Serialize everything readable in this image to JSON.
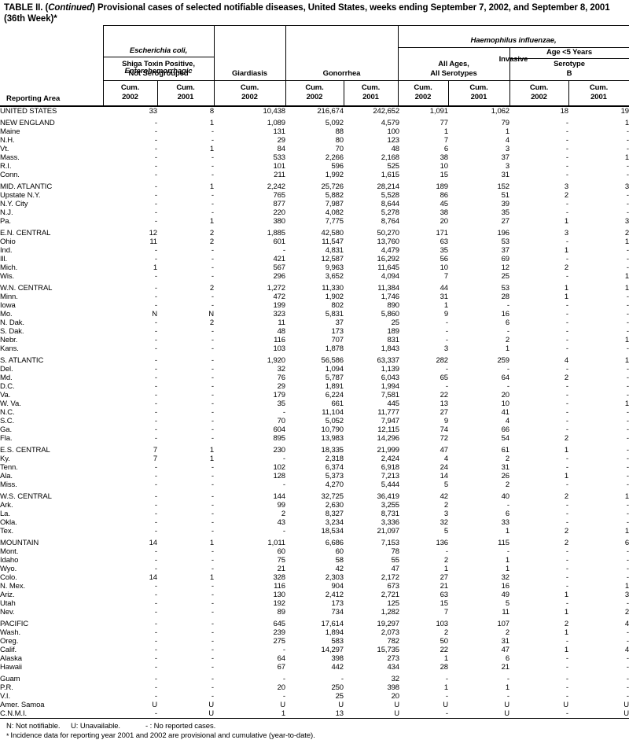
{
  "title": {
    "prefix": "TABLE II. (",
    "continued": "Continued",
    "rest": ") Provisional cases of selected notifiable diseases, United States, weeks ending September 7, 2002, and September 8, 2001",
    "line2": "(36th Week)*"
  },
  "table": {
    "header": {
      "reporting_area": "Reporting Area",
      "ecoli_line1": "Escherichia coli,",
      "ecoli_line2": "Enterohemorrhagic",
      "shiga": "Shiga Toxin Positive,\nNot Serogrouped",
      "giardiasis": "Giardiasis",
      "gonorrhea": "Gonorrhea",
      "hflu_line1": "Haemophilus influenzae,",
      "hflu_line2": "Invasive",
      "age5": "Age <5 Years",
      "all_ages": "All Ages,\nAll Serotypes",
      "serotype_b": "Serotype\nB",
      "cum2002": "Cum.\n2002",
      "cum2001": "Cum.\n2001"
    },
    "sections": [
      {
        "rows": [
          [
            "UNITED STATES",
            "33",
            "8",
            "10,438",
            "216,674",
            "242,652",
            "1,091",
            "1,062",
            "18",
            "19"
          ]
        ]
      },
      {
        "rows": [
          [
            "NEW ENGLAND",
            "-",
            "1",
            "1,089",
            "5,092",
            "4,579",
            "77",
            "79",
            "-",
            "1"
          ],
          [
            "Maine",
            "-",
            "-",
            "131",
            "88",
            "100",
            "1",
            "1",
            "-",
            "-"
          ],
          [
            "N.H.",
            "-",
            "-",
            "29",
            "80",
            "123",
            "7",
            "4",
            "-",
            "-"
          ],
          [
            "Vt.",
            "-",
            "1",
            "84",
            "70",
            "48",
            "6",
            "3",
            "-",
            "-"
          ],
          [
            "Mass.",
            "-",
            "-",
            "533",
            "2,266",
            "2,168",
            "38",
            "37",
            "-",
            "1"
          ],
          [
            "R.I.",
            "-",
            "-",
            "101",
            "596",
            "525",
            "10",
            "3",
            "-",
            "-"
          ],
          [
            "Conn.",
            "-",
            "-",
            "211",
            "1,992",
            "1,615",
            "15",
            "31",
            "-",
            "-"
          ]
        ]
      },
      {
        "rows": [
          [
            "MID. ATLANTIC",
            "-",
            "1",
            "2,242",
            "25,726",
            "28,214",
            "189",
            "152",
            "3",
            "3"
          ],
          [
            "Upstate N.Y.",
            "-",
            "-",
            "765",
            "5,882",
            "5,528",
            "86",
            "51",
            "2",
            "-"
          ],
          [
            "N.Y. City",
            "-",
            "-",
            "877",
            "7,987",
            "8,644",
            "45",
            "39",
            "-",
            "-"
          ],
          [
            "N.J.",
            "-",
            "-",
            "220",
            "4,082",
            "5,278",
            "38",
            "35",
            "-",
            "-"
          ],
          [
            "Pa.",
            "-",
            "1",
            "380",
            "7,775",
            "8,764",
            "20",
            "27",
            "1",
            "3"
          ]
        ]
      },
      {
        "rows": [
          [
            "E.N. CENTRAL",
            "12",
            "2",
            "1,885",
            "42,580",
            "50,270",
            "171",
            "196",
            "3",
            "2"
          ],
          [
            "Ohio",
            "11",
            "2",
            "601",
            "11,547",
            "13,760",
            "63",
            "53",
            "-",
            "1"
          ],
          [
            "Ind.",
            "-",
            "-",
            "-",
            "4,831",
            "4,479",
            "35",
            "37",
            "1",
            "-"
          ],
          [
            "Ill.",
            "-",
            "-",
            "421",
            "12,587",
            "16,292",
            "56",
            "69",
            "-",
            "-"
          ],
          [
            "Mich.",
            "1",
            "-",
            "567",
            "9,963",
            "11,645",
            "10",
            "12",
            "2",
            "-"
          ],
          [
            "Wis.",
            "-",
            "-",
            "296",
            "3,652",
            "4,094",
            "7",
            "25",
            "-",
            "1"
          ]
        ]
      },
      {
        "rows": [
          [
            "W.N. CENTRAL",
            "-",
            "2",
            "1,272",
            "11,330",
            "11,384",
            "44",
            "53",
            "1",
            "1"
          ],
          [
            "Minn.",
            "-",
            "-",
            "472",
            "1,902",
            "1,746",
            "31",
            "28",
            "1",
            "-"
          ],
          [
            "Iowa",
            "-",
            "-",
            "199",
            "802",
            "890",
            "1",
            "-",
            "-",
            "-"
          ],
          [
            "Mo.",
            "N",
            "N",
            "323",
            "5,831",
            "5,860",
            "9",
            "16",
            "-",
            "-"
          ],
          [
            "N. Dak.",
            "-",
            "2",
            "11",
            "37",
            "25",
            "-",
            "6",
            "-",
            "-"
          ],
          [
            "S. Dak.",
            "-",
            "-",
            "48",
            "173",
            "189",
            "-",
            "-",
            "-",
            "-"
          ],
          [
            "Nebr.",
            "-",
            "-",
            "116",
            "707",
            "831",
            "-",
            "2",
            "-",
            "1"
          ],
          [
            "Kans.",
            "-",
            "-",
            "103",
            "1,878",
            "1,843",
            "3",
            "1",
            "-",
            "-"
          ]
        ]
      },
      {
        "rows": [
          [
            "S. ATLANTIC",
            "-",
            "-",
            "1,920",
            "56,586",
            "63,337",
            "282",
            "259",
            "4",
            "1"
          ],
          [
            "Del.",
            "-",
            "-",
            "32",
            "1,094",
            "1,139",
            "-",
            "-",
            "-",
            "-"
          ],
          [
            "Md.",
            "-",
            "-",
            "76",
            "5,787",
            "6,043",
            "65",
            "64",
            "2",
            "-"
          ],
          [
            "D.C.",
            "-",
            "-",
            "29",
            "1,891",
            "1,994",
            "-",
            "-",
            "-",
            "-"
          ],
          [
            "Va.",
            "-",
            "-",
            "179",
            "6,224",
            "7,581",
            "22",
            "20",
            "-",
            "-"
          ],
          [
            "W. Va.",
            "-",
            "-",
            "35",
            "661",
            "445",
            "13",
            "10",
            "-",
            "1"
          ],
          [
            "N.C.",
            "-",
            "-",
            "-",
            "11,104",
            "11,777",
            "27",
            "41",
            "-",
            "-"
          ],
          [
            "S.C.",
            "-",
            "-",
            "70",
            "5,052",
            "7,947",
            "9",
            "4",
            "-",
            "-"
          ],
          [
            "Ga.",
            "-",
            "-",
            "604",
            "10,790",
            "12,115",
            "74",
            "66",
            "-",
            "-"
          ],
          [
            "Fla.",
            "-",
            "-",
            "895",
            "13,983",
            "14,296",
            "72",
            "54",
            "2",
            "-"
          ]
        ]
      },
      {
        "rows": [
          [
            "E.S. CENTRAL",
            "7",
            "1",
            "230",
            "18,335",
            "21,999",
            "47",
            "61",
            "1",
            "-"
          ],
          [
            "Ky.",
            "7",
            "1",
            "-",
            "2,318",
            "2,424",
            "4",
            "2",
            "-",
            "-"
          ],
          [
            "Tenn.",
            "-",
            "-",
            "102",
            "6,374",
            "6,918",
            "24",
            "31",
            "-",
            "-"
          ],
          [
            "Ala.",
            "-",
            "-",
            "128",
            "5,373",
            "7,213",
            "14",
            "26",
            "1",
            "-"
          ],
          [
            "Miss.",
            "-",
            "-",
            "-",
            "4,270",
            "5,444",
            "5",
            "2",
            "-",
            "-"
          ]
        ]
      },
      {
        "rows": [
          [
            "W.S. CENTRAL",
            "-",
            "-",
            "144",
            "32,725",
            "36,419",
            "42",
            "40",
            "2",
            "1"
          ],
          [
            "Ark.",
            "-",
            "-",
            "99",
            "2,630",
            "3,255",
            "2",
            "-",
            "-",
            "-"
          ],
          [
            "La.",
            "-",
            "-",
            "2",
            "8,327",
            "8,731",
            "3",
            "6",
            "-",
            "-"
          ],
          [
            "Okla.",
            "-",
            "-",
            "43",
            "3,234",
            "3,336",
            "32",
            "33",
            "-",
            "-"
          ],
          [
            "Tex.",
            "-",
            "-",
            "-",
            "18,534",
            "21,097",
            "5",
            "1",
            "2",
            "1"
          ]
        ]
      },
      {
        "rows": [
          [
            "MOUNTAIN",
            "14",
            "1",
            "1,011",
            "6,686",
            "7,153",
            "136",
            "115",
            "2",
            "6"
          ],
          [
            "Mont.",
            "-",
            "-",
            "60",
            "60",
            "78",
            "-",
            "-",
            "-",
            "-"
          ],
          [
            "Idaho",
            "-",
            "-",
            "75",
            "58",
            "55",
            "2",
            "1",
            "-",
            "-"
          ],
          [
            "Wyo.",
            "-",
            "-",
            "21",
            "42",
            "47",
            "1",
            "1",
            "-",
            "-"
          ],
          [
            "Colo.",
            "14",
            "1",
            "328",
            "2,303",
            "2,172",
            "27",
            "32",
            "-",
            "-"
          ],
          [
            "N. Mex.",
            "-",
            "-",
            "116",
            "904",
            "673",
            "21",
            "16",
            "-",
            "1"
          ],
          [
            "Ariz.",
            "-",
            "-",
            "130",
            "2,412",
            "2,721",
            "63",
            "49",
            "1",
            "3"
          ],
          [
            "Utah",
            "-",
            "-",
            "192",
            "173",
            "125",
            "15",
            "5",
            "-",
            "-"
          ],
          [
            "Nev.",
            "-",
            "-",
            "89",
            "734",
            "1,282",
            "7",
            "11",
            "1",
            "2"
          ]
        ]
      },
      {
        "rows": [
          [
            "PACIFIC",
            "-",
            "-",
            "645",
            "17,614",
            "19,297",
            "103",
            "107",
            "2",
            "4"
          ],
          [
            "Wash.",
            "-",
            "-",
            "239",
            "1,894",
            "2,073",
            "2",
            "2",
            "1",
            "-"
          ],
          [
            "Oreg.",
            "-",
            "-",
            "275",
            "583",
            "782",
            "50",
            "31",
            "-",
            "-"
          ],
          [
            "Calif.",
            "-",
            "-",
            "-",
            "14,297",
            "15,735",
            "22",
            "47",
            "1",
            "4"
          ],
          [
            "Alaska",
            "-",
            "-",
            "64",
            "398",
            "273",
            "1",
            "6",
            "-",
            "-"
          ],
          [
            "Hawaii",
            "-",
            "-",
            "67",
            "442",
            "434",
            "28",
            "21",
            "-",
            "-"
          ]
        ]
      },
      {
        "rows": [
          [
            "Guam",
            "-",
            "-",
            "-",
            "-",
            "32",
            "-",
            "-",
            "-",
            "-"
          ],
          [
            "P.R.",
            "-",
            "-",
            "20",
            "250",
            "398",
            "1",
            "1",
            "-",
            "-"
          ],
          [
            "V.I.",
            "-",
            "-",
            "-",
            "25",
            "20",
            "-",
            "-",
            "-",
            "-"
          ],
          [
            "Amer. Samoa",
            "U",
            "U",
            "U",
            "U",
            "U",
            "U",
            "U",
            "U",
            "U"
          ],
          [
            "C.N.M.I.",
            "-",
            "U",
            "1",
            "13",
            "U",
            "-",
            "U",
            "-",
            "U"
          ]
        ]
      }
    ]
  },
  "footnotes": {
    "n": "N: Not notifiable.",
    "u": "U: Unavailable.",
    "dash": "- : No reported cases.",
    "asterisk": "*",
    "line2": "Incidence data for reporting year 2001 and 2002 are provisional and cumulative (year-to-date)."
  }
}
